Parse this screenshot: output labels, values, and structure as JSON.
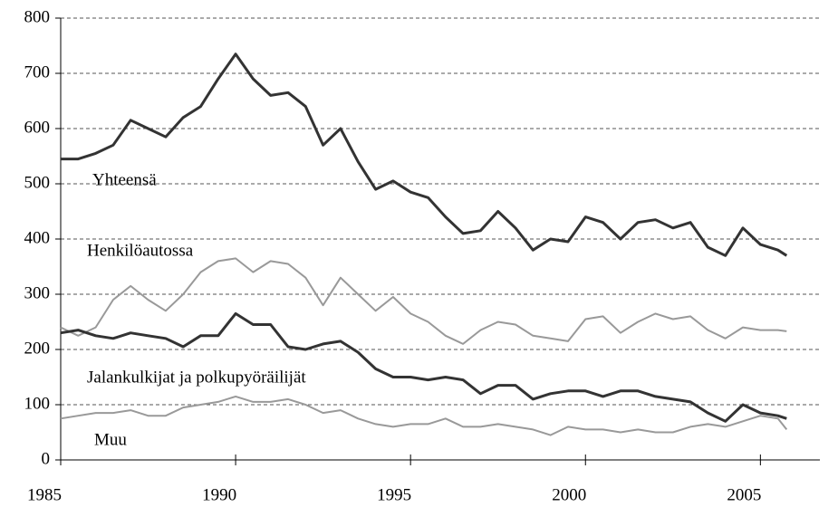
{
  "chart_data": {
    "type": "line",
    "x": [
      1985,
      1985.5,
      1986,
      1986.5,
      1987,
      1987.5,
      1988,
      1988.5,
      1989,
      1989.5,
      1990,
      1990.5,
      1991,
      1991.5,
      1992,
      1992.5,
      1993,
      1993.5,
      1994,
      1994.5,
      1995,
      1995.5,
      1996,
      1996.5,
      1997,
      1997.5,
      1998,
      1998.5,
      1999,
      1999.5,
      2000,
      2000.5,
      2001,
      2001.5,
      2002,
      2002.5,
      2003,
      2003.5,
      2004,
      2004.5,
      2005,
      2005.5,
      2005.75
    ],
    "series": [
      {
        "name": "Yhteensä",
        "color": "#333333",
        "values": [
          545,
          545,
          555,
          570,
          615,
          600,
          585,
          620,
          640,
          690,
          735,
          690,
          660,
          665,
          640,
          570,
          600,
          540,
          490,
          505,
          485,
          475,
          440,
          410,
          415,
          450,
          420,
          380,
          400,
          395,
          440,
          430,
          400,
          430,
          435,
          420,
          430,
          385,
          370,
          420,
          390,
          380,
          370
        ]
      },
      {
        "name": "Henkilöautossa",
        "color": "#999999",
        "values": [
          240,
          225,
          240,
          290,
          315,
          290,
          270,
          300,
          340,
          360,
          365,
          340,
          360,
          355,
          330,
          280,
          330,
          300,
          270,
          295,
          265,
          250,
          225,
          210,
          235,
          250,
          245,
          225,
          220,
          215,
          255,
          260,
          230,
          250,
          265,
          255,
          260,
          235,
          220,
          240,
          235,
          235,
          233
        ]
      },
      {
        "name": "Jalankulkijat ja polkupyöräilijät",
        "color": "#333333",
        "values": [
          230,
          235,
          225,
          220,
          230,
          225,
          220,
          205,
          225,
          225,
          265,
          245,
          245,
          205,
          200,
          210,
          215,
          195,
          165,
          150,
          150,
          145,
          150,
          145,
          120,
          135,
          135,
          110,
          120,
          125,
          125,
          115,
          125,
          125,
          115,
          110,
          105,
          85,
          70,
          100,
          85,
          80,
          75
        ]
      },
      {
        "name": "Muu",
        "color": "#999999",
        "values": [
          75,
          80,
          85,
          85,
          90,
          80,
          80,
          95,
          100,
          105,
          115,
          105,
          105,
          110,
          100,
          85,
          90,
          75,
          65,
          60,
          65,
          65,
          75,
          60,
          60,
          65,
          60,
          55,
          45,
          60,
          55,
          55,
          50,
          55,
          50,
          50,
          60,
          65,
          60,
          70,
          80,
          75,
          55
        ]
      }
    ],
    "xlim": [
      1985,
      2006.7
    ],
    "xticks": [
      1985,
      1990,
      1995,
      2000,
      2005
    ],
    "ylim": [
      0,
      800
    ],
    "yticks": [
      0,
      100,
      200,
      300,
      400,
      500,
      600,
      700,
      800
    ],
    "grid": true
  }
}
